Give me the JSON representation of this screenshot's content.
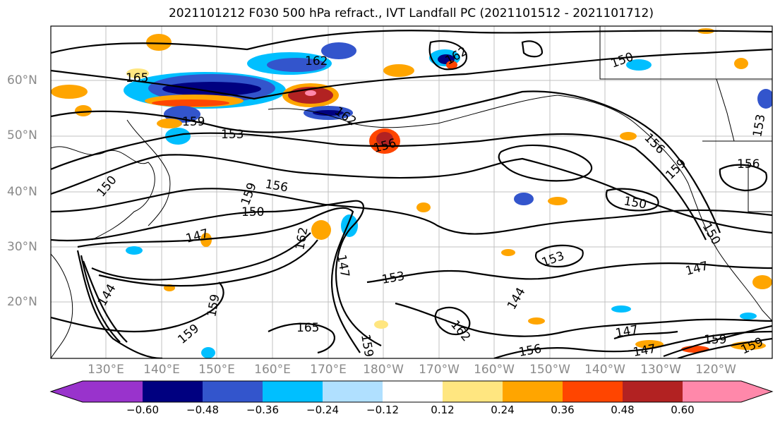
{
  "title": "2021101212 F030 500 hPa refract., IVT Landfall PC (2021101512 - 2021101712)",
  "lat_labels": [
    "60°N",
    "50°N",
    "40°N",
    "30°N",
    "20°N"
  ],
  "lon_labels": [
    "130°E",
    "140°E",
    "150°E",
    "160°E",
    "170°E",
    "180°W",
    "170°W",
    "160°W",
    "150°W",
    "140°W",
    "130°W",
    "120°W"
  ],
  "contour_labels": [
    "165",
    "162",
    "162",
    "162",
    "159",
    "153",
    "156",
    "156",
    "159",
    "156",
    "150",
    "150",
    "147",
    "147",
    "153",
    "153",
    "150",
    "150",
    "147",
    "147",
    "144",
    "144",
    "159",
    "159",
    "165",
    "162",
    "156",
    "159",
    "147",
    "162",
    "159",
    "159",
    "156",
    "159",
    "150",
    "153"
  ],
  "colorbar": {
    "ticks": [
      "−0.60",
      "−0.48",
      "−0.36",
      "−0.24",
      "−0.12",
      "0.12",
      "0.24",
      "0.36",
      "0.48",
      "0.60"
    ],
    "colors": [
      "#9933cc",
      "#000080",
      "#3355cc",
      "#00bfff",
      "#b0e0ff",
      "#ffffff",
      "#ffe680",
      "#ffa500",
      "#ff4500",
      "#b22222",
      "#ff88aa"
    ]
  }
}
